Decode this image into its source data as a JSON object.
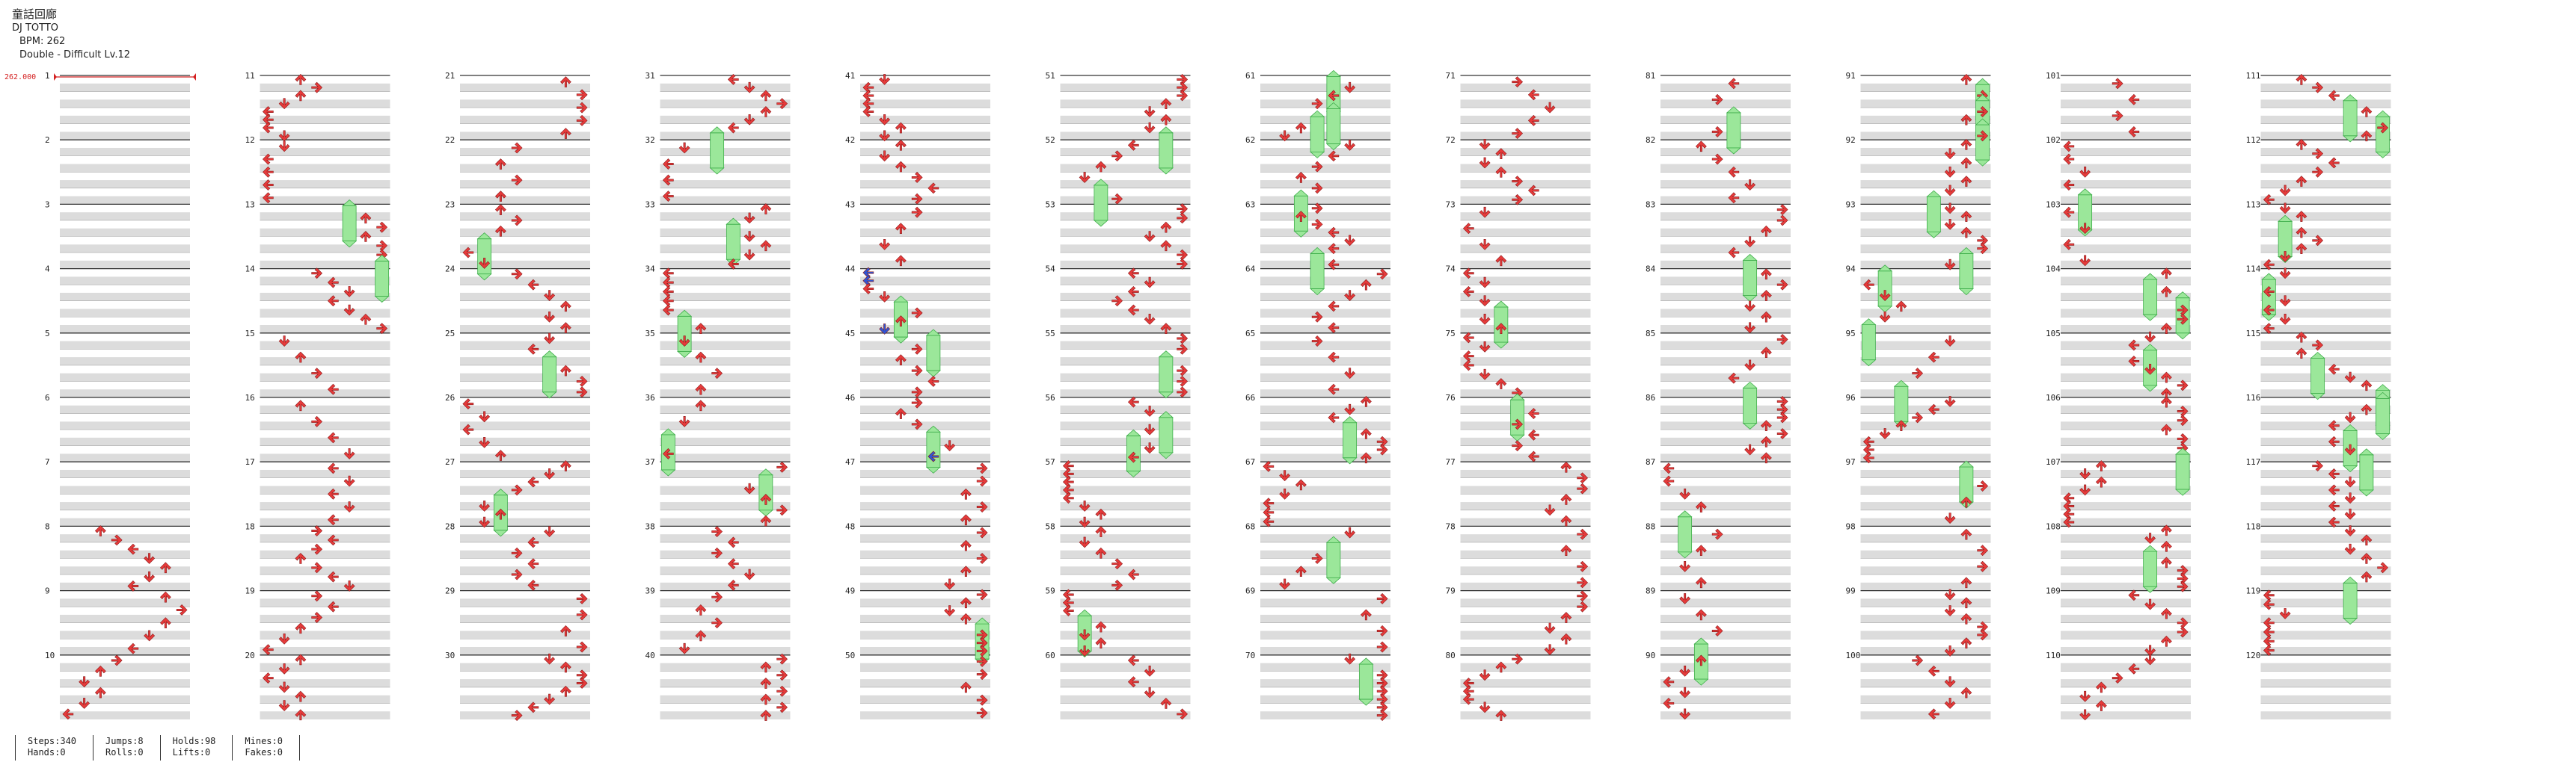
{
  "song": {
    "title": "童話回廊",
    "artist": "DJ TOTTO",
    "bpm_text": "BPM: 262",
    "difficulty": "Double - Difficult  Lv.12"
  },
  "bpm_marker": {
    "label": "262.000"
  },
  "chart": {
    "measures_total": 120,
    "measures_per_column": 10,
    "lanes": 8,
    "colors": {
      "arrow": "#e63b3b",
      "arrow_blue": "#2f55d4",
      "hold": "#9be79a",
      "hold_edge": "#3fae4b",
      "stripe": "#dcdcdc",
      "beat_line": "#333333",
      "bpm_line": "#d42020"
    }
  },
  "stats": {
    "steps": "Steps:340",
    "hands": "Hands:0",
    "jumps": "Jumps:8",
    "rolls": "Rolls:0",
    "holds": "Holds:98",
    "lifts": "Lifts:0",
    "mines": "Mines:0",
    "fakes": "Fakes:0"
  }
}
